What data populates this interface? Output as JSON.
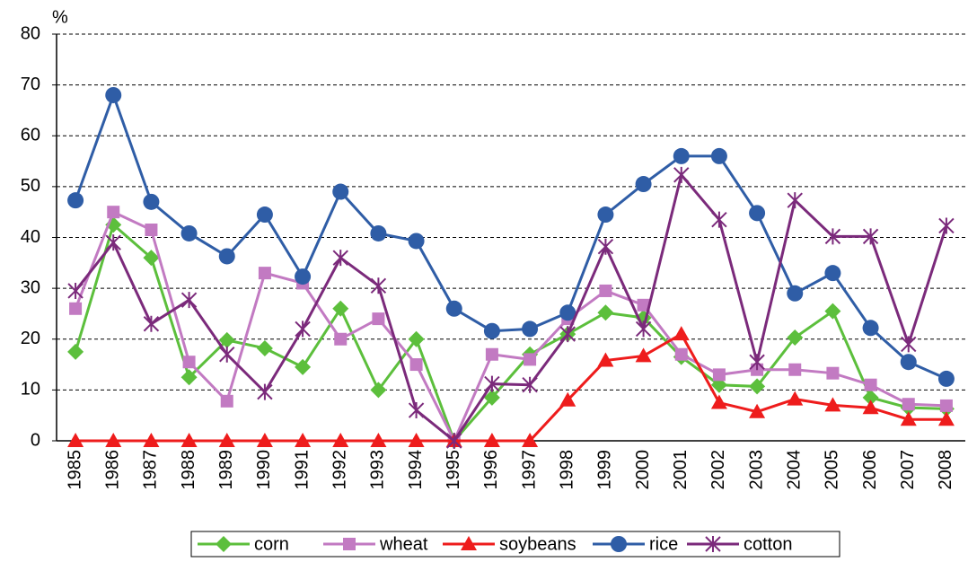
{
  "chart_data": {
    "type": "line",
    "y_label": "%",
    "categories": [
      "1985",
      "1986",
      "1987",
      "1988",
      "1989",
      "1990",
      "1991",
      "1992",
      "1993",
      "1994",
      "1995",
      "1996",
      "1997",
      "1998",
      "1999",
      "2000",
      "2001",
      "2002",
      "2003",
      "2004",
      "2005",
      "2006",
      "2007",
      "2008"
    ],
    "series": [
      {
        "name": "corn",
        "color": "#5cbf3c",
        "marker": "diamond",
        "values": [
          17.5,
          42.5,
          36,
          12.5,
          19.8,
          18.2,
          14.5,
          26,
          10,
          20,
          0,
          8.5,
          17,
          21,
          25.2,
          24.2,
          16.5,
          11,
          10.7,
          20.3,
          25.5,
          8.5,
          6.5,
          6.3
        ]
      },
      {
        "name": "wheat",
        "color": "#c27ac2",
        "marker": "square",
        "values": [
          26,
          45,
          41.5,
          15.5,
          7.8,
          33,
          31,
          20,
          24,
          15,
          0,
          17,
          16,
          24,
          29.5,
          26.7,
          17,
          13,
          14,
          14,
          13.3,
          11,
          7.2,
          6.9
        ]
      },
      {
        "name": "soybeans",
        "color": "#ee1c1c",
        "marker": "triangle",
        "values": [
          0,
          0,
          0,
          0,
          0,
          0,
          0,
          0,
          0,
          0,
          0,
          0,
          0,
          8,
          15.8,
          16.7,
          21,
          7.5,
          5.7,
          8.2,
          7,
          6.5,
          4.2,
          4.2
        ]
      },
      {
        "name": "rice",
        "color": "#2f5da6",
        "marker": "circle",
        "values": [
          47.3,
          68,
          47,
          40.8,
          36.3,
          44.5,
          32.3,
          49,
          40.8,
          39.3,
          26,
          21.6,
          22,
          25.2,
          44.5,
          50.5,
          56,
          56,
          44.8,
          29,
          33,
          22.2,
          15.5,
          12.2
        ]
      },
      {
        "name": "cotton",
        "color": "#7b2a7b",
        "marker": "asterisk",
        "values": [
          29.5,
          39,
          23,
          27.7,
          17,
          9.6,
          22,
          36,
          30.5,
          6,
          0,
          11.2,
          11,
          21,
          38.2,
          22,
          52.3,
          43.5,
          15.5,
          47.3,
          40.2,
          40.2,
          19,
          42.3
        ]
      }
    ],
    "ylim": [
      0,
      80
    ],
    "yticks": [
      0,
      10,
      20,
      30,
      40,
      50,
      60,
      70,
      80
    ],
    "grid": true,
    "legend": "bottom"
  }
}
